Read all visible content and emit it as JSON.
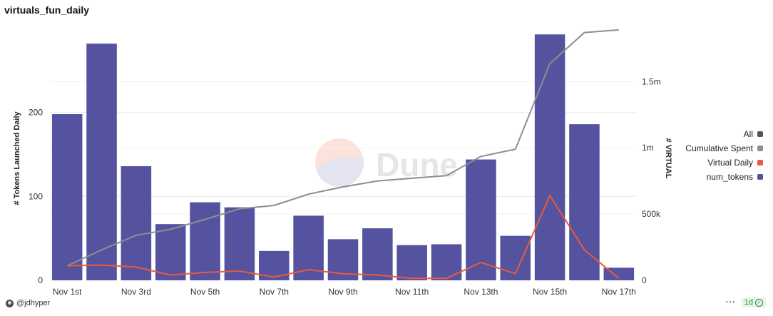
{
  "header": {
    "title": "virtuals_fun_daily"
  },
  "footer": {
    "author": "@jdhyper",
    "interval": "1d",
    "more_glyph": "···"
  },
  "watermark": {
    "text": "Dune"
  },
  "legend": [
    {
      "label": "All",
      "color": "#555555"
    },
    {
      "label": "Cumulative Spent",
      "color": "#8e8e8e"
    },
    {
      "label": "Virtual Daily",
      "color": "#ea5a3c"
    },
    {
      "label": "num_tokens",
      "color": "#55539f"
    }
  ],
  "chart_data": {
    "type": "bar",
    "title": "virtuals_fun_daily",
    "categories": [
      "Nov 1st",
      "Nov 2nd",
      "Nov 3rd",
      "Nov 4th",
      "Nov 5th",
      "Nov 6th",
      "Nov 7th",
      "Nov 8th",
      "Nov 9th",
      "Nov 10th",
      "Nov 11th",
      "Nov 12th",
      "Nov 13th",
      "Nov 14th",
      "Nov 15th",
      "Nov 16th",
      "Nov 17th"
    ],
    "x_tick_labels": [
      "Nov 1st",
      "Nov 3rd",
      "Nov 5th",
      "Nov 7th",
      "Nov 9th",
      "Nov 11th",
      "Nov 13th",
      "Nov 15th",
      "Nov 17th"
    ],
    "ylabel_left": "# Tokens Launched Daily",
    "ylabel_right": "# VIRTUAL",
    "left_axis": {
      "ticks": [
        0,
        100,
        200
      ],
      "tick_labels": [
        "0",
        "100",
        "200"
      ],
      "range": [
        0,
        300
      ]
    },
    "right_axis": {
      "ticks": [
        0,
        500000,
        1000000,
        1500000
      ],
      "tick_labels": [
        "0",
        "500k",
        "1m",
        "1.5m"
      ],
      "range": [
        0,
        1900000
      ]
    },
    "grid": true,
    "legend_position": "right",
    "series": [
      {
        "name": "num_tokens",
        "type": "bar",
        "axis": "left",
        "color": "#55539f",
        "values": [
          198,
          282,
          136,
          67,
          93,
          87,
          35,
          77,
          49,
          62,
          42,
          43,
          144,
          53,
          293,
          186,
          15
        ]
      },
      {
        "name": "Virtual Daily",
        "type": "line",
        "axis": "right",
        "color": "#ea5a3c",
        "values": [
          110000,
          115000,
          100000,
          40000,
          60000,
          70000,
          25000,
          80000,
          50000,
          40000,
          15000,
          15000,
          135000,
          50000,
          640000,
          230000,
          15000
        ]
      },
      {
        "name": "Cumulative Spent",
        "type": "line",
        "axis": "right",
        "color": "#8e8e8e",
        "values": [
          110000,
          230000,
          340000,
          385000,
          460000,
          540000,
          565000,
          650000,
          705000,
          750000,
          770000,
          790000,
          935000,
          990000,
          1635000,
          1870000,
          1890000
        ]
      }
    ]
  }
}
